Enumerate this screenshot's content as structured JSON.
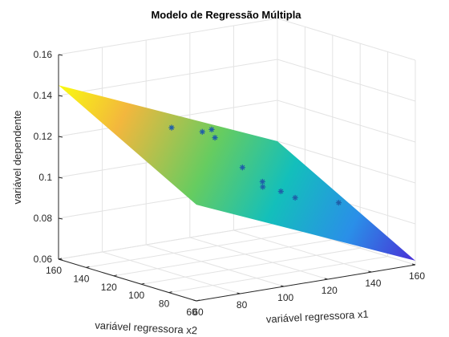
{
  "chart_data": {
    "type": "scatter",
    "subtype": "3d surface with scatter",
    "title": "Modelo de Regressão Múltipla",
    "xlabel": "variável regressora x1",
    "ylabel": "variável regressora x2",
    "zlabel": "variável dependente",
    "xlim": [
      60,
      160
    ],
    "ylim": [
      60,
      160
    ],
    "zlim": [
      0.06,
      0.16
    ],
    "xticks": [
      "60",
      "80",
      "100",
      "120",
      "140",
      "160"
    ],
    "yticks": [
      "60",
      "80",
      "100",
      "120",
      "140",
      "160"
    ],
    "zticks": [
      "0.06",
      "0.08",
      "0.1",
      "0.12",
      "0.14",
      "0.16"
    ],
    "grid": true,
    "colormap": "parula",
    "marker": "*",
    "marker_color": "#1f5fa8",
    "surface_plane": {
      "description": "fitted plane z = b0 + b1*x1 + b2*x2 over x1,x2 in [60,160]",
      "z_at_x1_60_x2_160": 0.145,
      "z_at_x1_160_x2_160": 0.1,
      "z_at_x1_160_x2_60": 0.062,
      "z_at_x1_60_x2_60": 0.107
    },
    "points": [
      {
        "x1": 94,
        "x2": 132,
        "z": 0.124
      },
      {
        "x1": 103,
        "x2": 124,
        "z": 0.122
      },
      {
        "x1": 106,
        "x2": 122,
        "z": 0.123
      },
      {
        "x1": 105,
        "x2": 118,
        "z": 0.12
      },
      {
        "x1": 110,
        "x2": 106,
        "z": 0.107
      },
      {
        "x1": 116,
        "x2": 101,
        "z": 0.1
      },
      {
        "x1": 113,
        "x2": 96,
        "z": 0.099
      },
      {
        "x1": 120,
        "x2": 94,
        "z": 0.096
      },
      {
        "x1": 124,
        "x2": 90,
        "z": 0.093
      },
      {
        "x1": 142,
        "x2": 87,
        "z": 0.088
      }
    ]
  }
}
